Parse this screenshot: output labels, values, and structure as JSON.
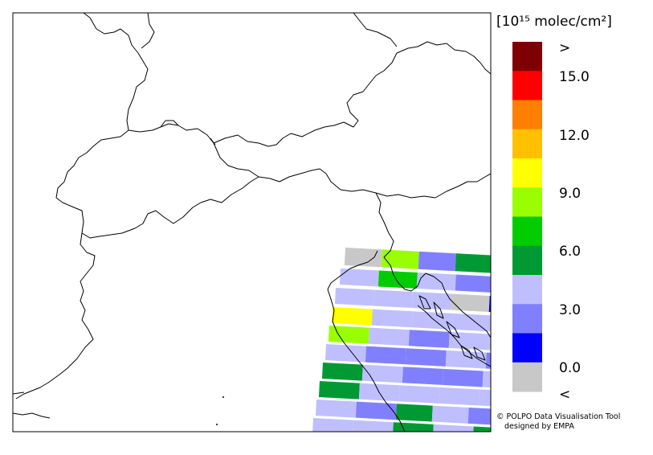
{
  "legend": {
    "unit_label": "[10¹⁵ molec/cm²]",
    "classes": [
      {
        "range": ">15.0",
        "color": "#7f0000"
      },
      {
        "range": "13.5-15.0",
        "color": "#ff0000"
      },
      {
        "range": "12.0-13.5",
        "color": "#ff7f00"
      },
      {
        "range": "10.5-12.0",
        "color": "#ffc000"
      },
      {
        "range": "9.0-10.5",
        "color": "#ffff00"
      },
      {
        "range": "7.5-9.0",
        "color": "#99ff00"
      },
      {
        "range": "6.0-7.5",
        "color": "#00cc00"
      },
      {
        "range": "4.5-6.0",
        "color": "#009933"
      },
      {
        "range": "3.0-4.5",
        "color": "#bfbfff"
      },
      {
        "range": "1.5-3.0",
        "color": "#8080ff"
      },
      {
        "range": "0.0-1.5",
        "color": "#0000ff"
      },
      {
        "range": "<0.0",
        "color": "#c8c8c8"
      }
    ],
    "labels": [
      ">",
      "15.0",
      "12.0",
      "9.0",
      "6.0",
      "3.0",
      "0.0",
      "<"
    ]
  },
  "credits": {
    "line1": "© POLPO Data Visualisation Tool",
    "line2": "designed by EMPA"
  }
}
